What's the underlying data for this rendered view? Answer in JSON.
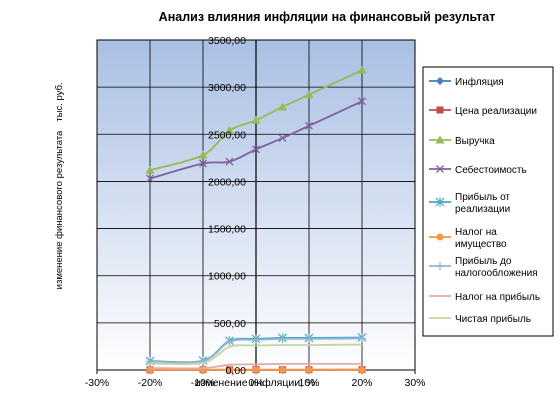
{
  "chart_data": {
    "type": "line",
    "title": "Анализ влияния инфляции на финансовый результат",
    "xlabel": "изменение инфляции, %",
    "ylabel_main": "изменение финансового результата",
    "ylabel_unit": "тыс. руб.",
    "x_ticks": [
      "-30%",
      "-20%",
      "-10%",
      "0%",
      "10%",
      "20%",
      "30%"
    ],
    "y_ticks": [
      "0,00",
      "500,00",
      "1000,00",
      "1500,00",
      "2000,00",
      "2500,00",
      "3000,00",
      "3500,00"
    ],
    "xlim": [
      -30,
      30
    ],
    "ylim": [
      0,
      3500
    ],
    "grid": true,
    "legend_position": "right",
    "x": [
      -20,
      -10,
      -5,
      0,
      5,
      10,
      20
    ],
    "series": [
      {
        "name": "Инфляция",
        "color": "#4a7ebb",
        "marker": "diamond",
        "values": [
          -0.2,
          -0.1,
          -0.05,
          0,
          0.05,
          0.1,
          0.2
        ]
      },
      {
        "name": "Цена реализации",
        "color": "#be4b48",
        "marker": "square",
        "values": [
          2,
          3,
          3,
          3,
          3,
          3,
          4
        ]
      },
      {
        "name": "Выручка",
        "color": "#98b954",
        "marker": "triangle",
        "values": [
          2120,
          2280,
          2540,
          2650,
          2790,
          2920,
          3180
        ]
      },
      {
        "name": "Себестоимость",
        "color": "#7d60a0",
        "marker": "x",
        "values": [
          2030,
          2190,
          2210,
          2340,
          2460,
          2590,
          2850
        ]
      },
      {
        "name": "Прибыль от реализации",
        "color": "#46aac5",
        "marker": "star",
        "values": [
          95,
          100,
          310,
          330,
          340,
          340,
          345
        ]
      },
      {
        "name": "Налог на имущество",
        "color": "#f79646",
        "marker": "circle",
        "values": [
          2,
          2,
          2,
          2,
          2,
          2,
          2
        ]
      },
      {
        "name": "Прибыль до налогообложения",
        "color": "#95b3d7",
        "marker": "plus",
        "values": [
          90,
          95,
          300,
          320,
          330,
          330,
          335
        ]
      },
      {
        "name": "Налог на прибыль",
        "color": "#e6a9a7",
        "marker": "none",
        "values": [
          20,
          20,
          55,
          60,
          65,
          65,
          65
        ]
      },
      {
        "name": "Чистая прибыль",
        "color": "#c4d79b",
        "marker": "none",
        "values": [
          70,
          75,
          245,
          260,
          265,
          265,
          270
        ]
      }
    ]
  }
}
